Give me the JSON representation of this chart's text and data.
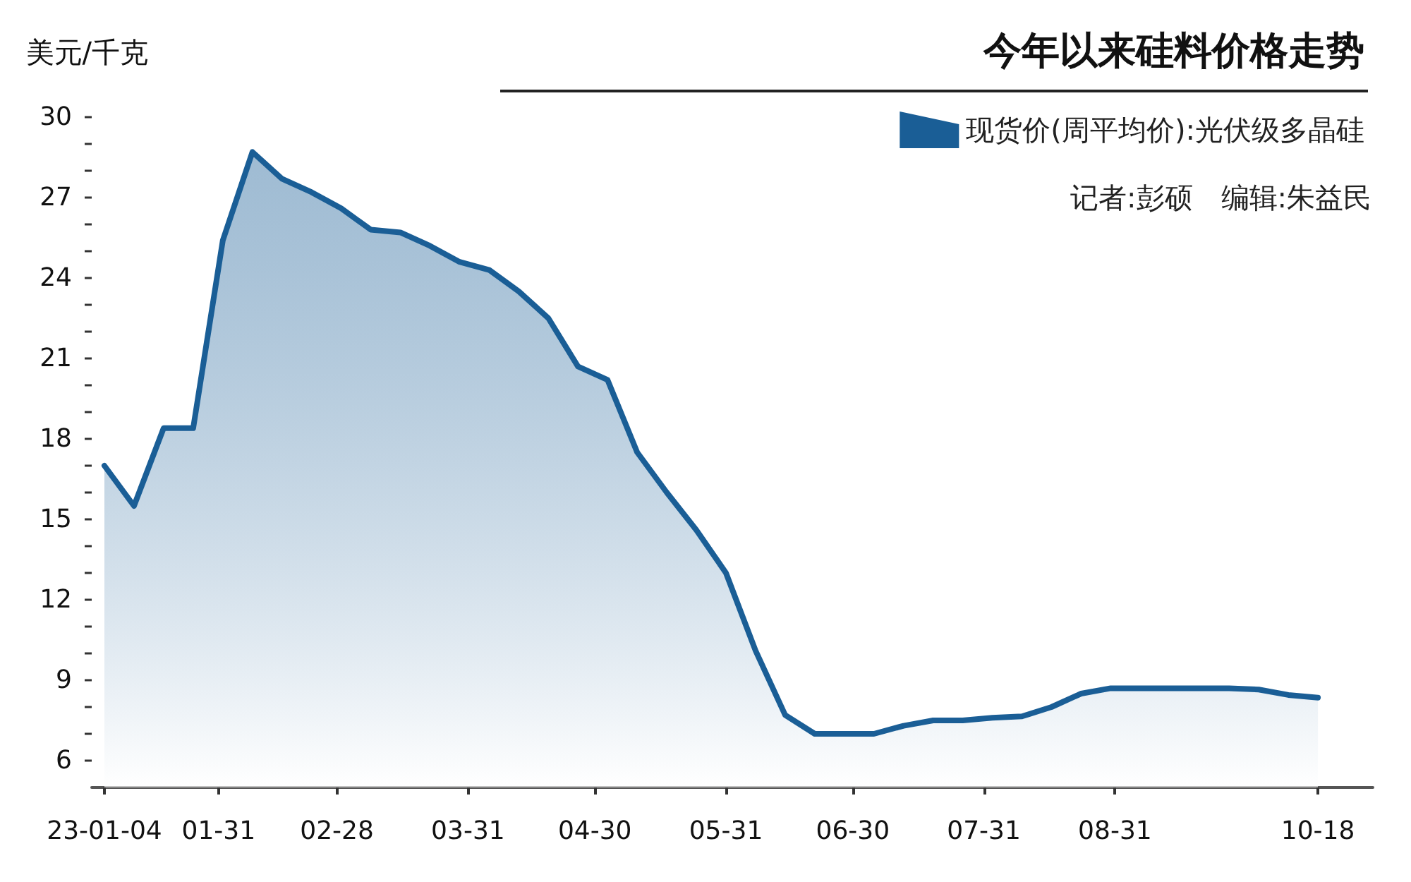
{
  "chart_data": {
    "type": "area",
    "title": "今年以来硅料价格走势",
    "ylabel": "美元/千克",
    "annotations": [
      "记者:彭硕　编辑:朱益民"
    ],
    "x": [
      "--01-04",
      "--01-11",
      "--01-18",
      "--01-25",
      "--02-01",
      "--02-08",
      "--02-15",
      "--02-22",
      "--03-01",
      "--03-08",
      "--03-15",
      "--03-22",
      "--03-29",
      "--04-05",
      "--04-12",
      "--04-19",
      "--04-26",
      "--05-03",
      "--05-10",
      "--05-17",
      "--05-24",
      "--05-31",
      "--06-07",
      "--06-14",
      "--06-21",
      "--06-28",
      "--07-05",
      "--07-12",
      "--07-19",
      "--07-26",
      "--08-02",
      "--08-09",
      "--08-16",
      "--08-23",
      "--08-30",
      "--09-06",
      "--09-13",
      "--09-20",
      "--09-27",
      "--10-04",
      "--10-11",
      "--10-18"
    ],
    "series": [
      {
        "name": "现货价(周平均价):光伏级多晶硅",
        "color": "#1a5e96",
        "values": [
          17.0,
          15.5,
          18.4,
          18.4,
          25.4,
          28.7,
          27.7,
          27.2,
          26.6,
          25.8,
          25.7,
          25.2,
          24.6,
          24.3,
          23.5,
          22.5,
          20.7,
          20.2,
          17.5,
          16.0,
          14.6,
          13.0,
          10.1,
          7.7,
          7.0,
          7.0,
          7.0,
          7.3,
          7.5,
          7.5,
          7.6,
          7.65,
          8.0,
          8.5,
          8.7,
          8.7,
          8.7,
          8.7,
          8.7,
          8.65,
          8.45,
          8.35
        ]
      }
    ],
    "xlim": [
      "--01-01",
      "--10-31"
    ],
    "xticks": [
      {
        "value": "--01-04",
        "label": "23-01-04"
      },
      {
        "value": "--01-31",
        "label": "01-31"
      },
      {
        "value": "--02-28",
        "label": "02-28"
      },
      {
        "value": "--03-31",
        "label": "03-31"
      },
      {
        "value": "--04-30",
        "label": "04-30"
      },
      {
        "value": "--05-31",
        "label": "05-31"
      },
      {
        "value": "--06-30",
        "label": "06-30"
      },
      {
        "value": "--07-31",
        "label": "07-31"
      },
      {
        "value": "--08-31",
        "label": "08-31"
      },
      {
        "value": "--10-18",
        "label": "10-18"
      }
    ],
    "ylim": [
      5,
      30
    ],
    "yticks": [
      6,
      {
        "value": 7,
        "label": null
      },
      {
        "value": 8,
        "label": null
      },
      9,
      {
        "value": 10,
        "label": null
      },
      {
        "value": 11,
        "label": null
      },
      12,
      {
        "value": 13,
        "label": null
      },
      {
        "value": 14,
        "label": null
      },
      15,
      {
        "value": 16,
        "label": null
      },
      {
        "value": 17,
        "label": null
      },
      18,
      {
        "value": 19,
        "label": null
      },
      {
        "value": 20,
        "label": null
      },
      21,
      {
        "value": 22,
        "label": null
      },
      {
        "value": 23,
        "label": null
      },
      24,
      {
        "value": 25,
        "label": null
      },
      {
        "value": 26,
        "label": null
      },
      27,
      {
        "value": 28,
        "label": null
      },
      {
        "value": 29,
        "label": null
      },
      30
    ],
    "grid": false,
    "legend": "top right",
    "marker": "none",
    "line_style": "solid"
  }
}
